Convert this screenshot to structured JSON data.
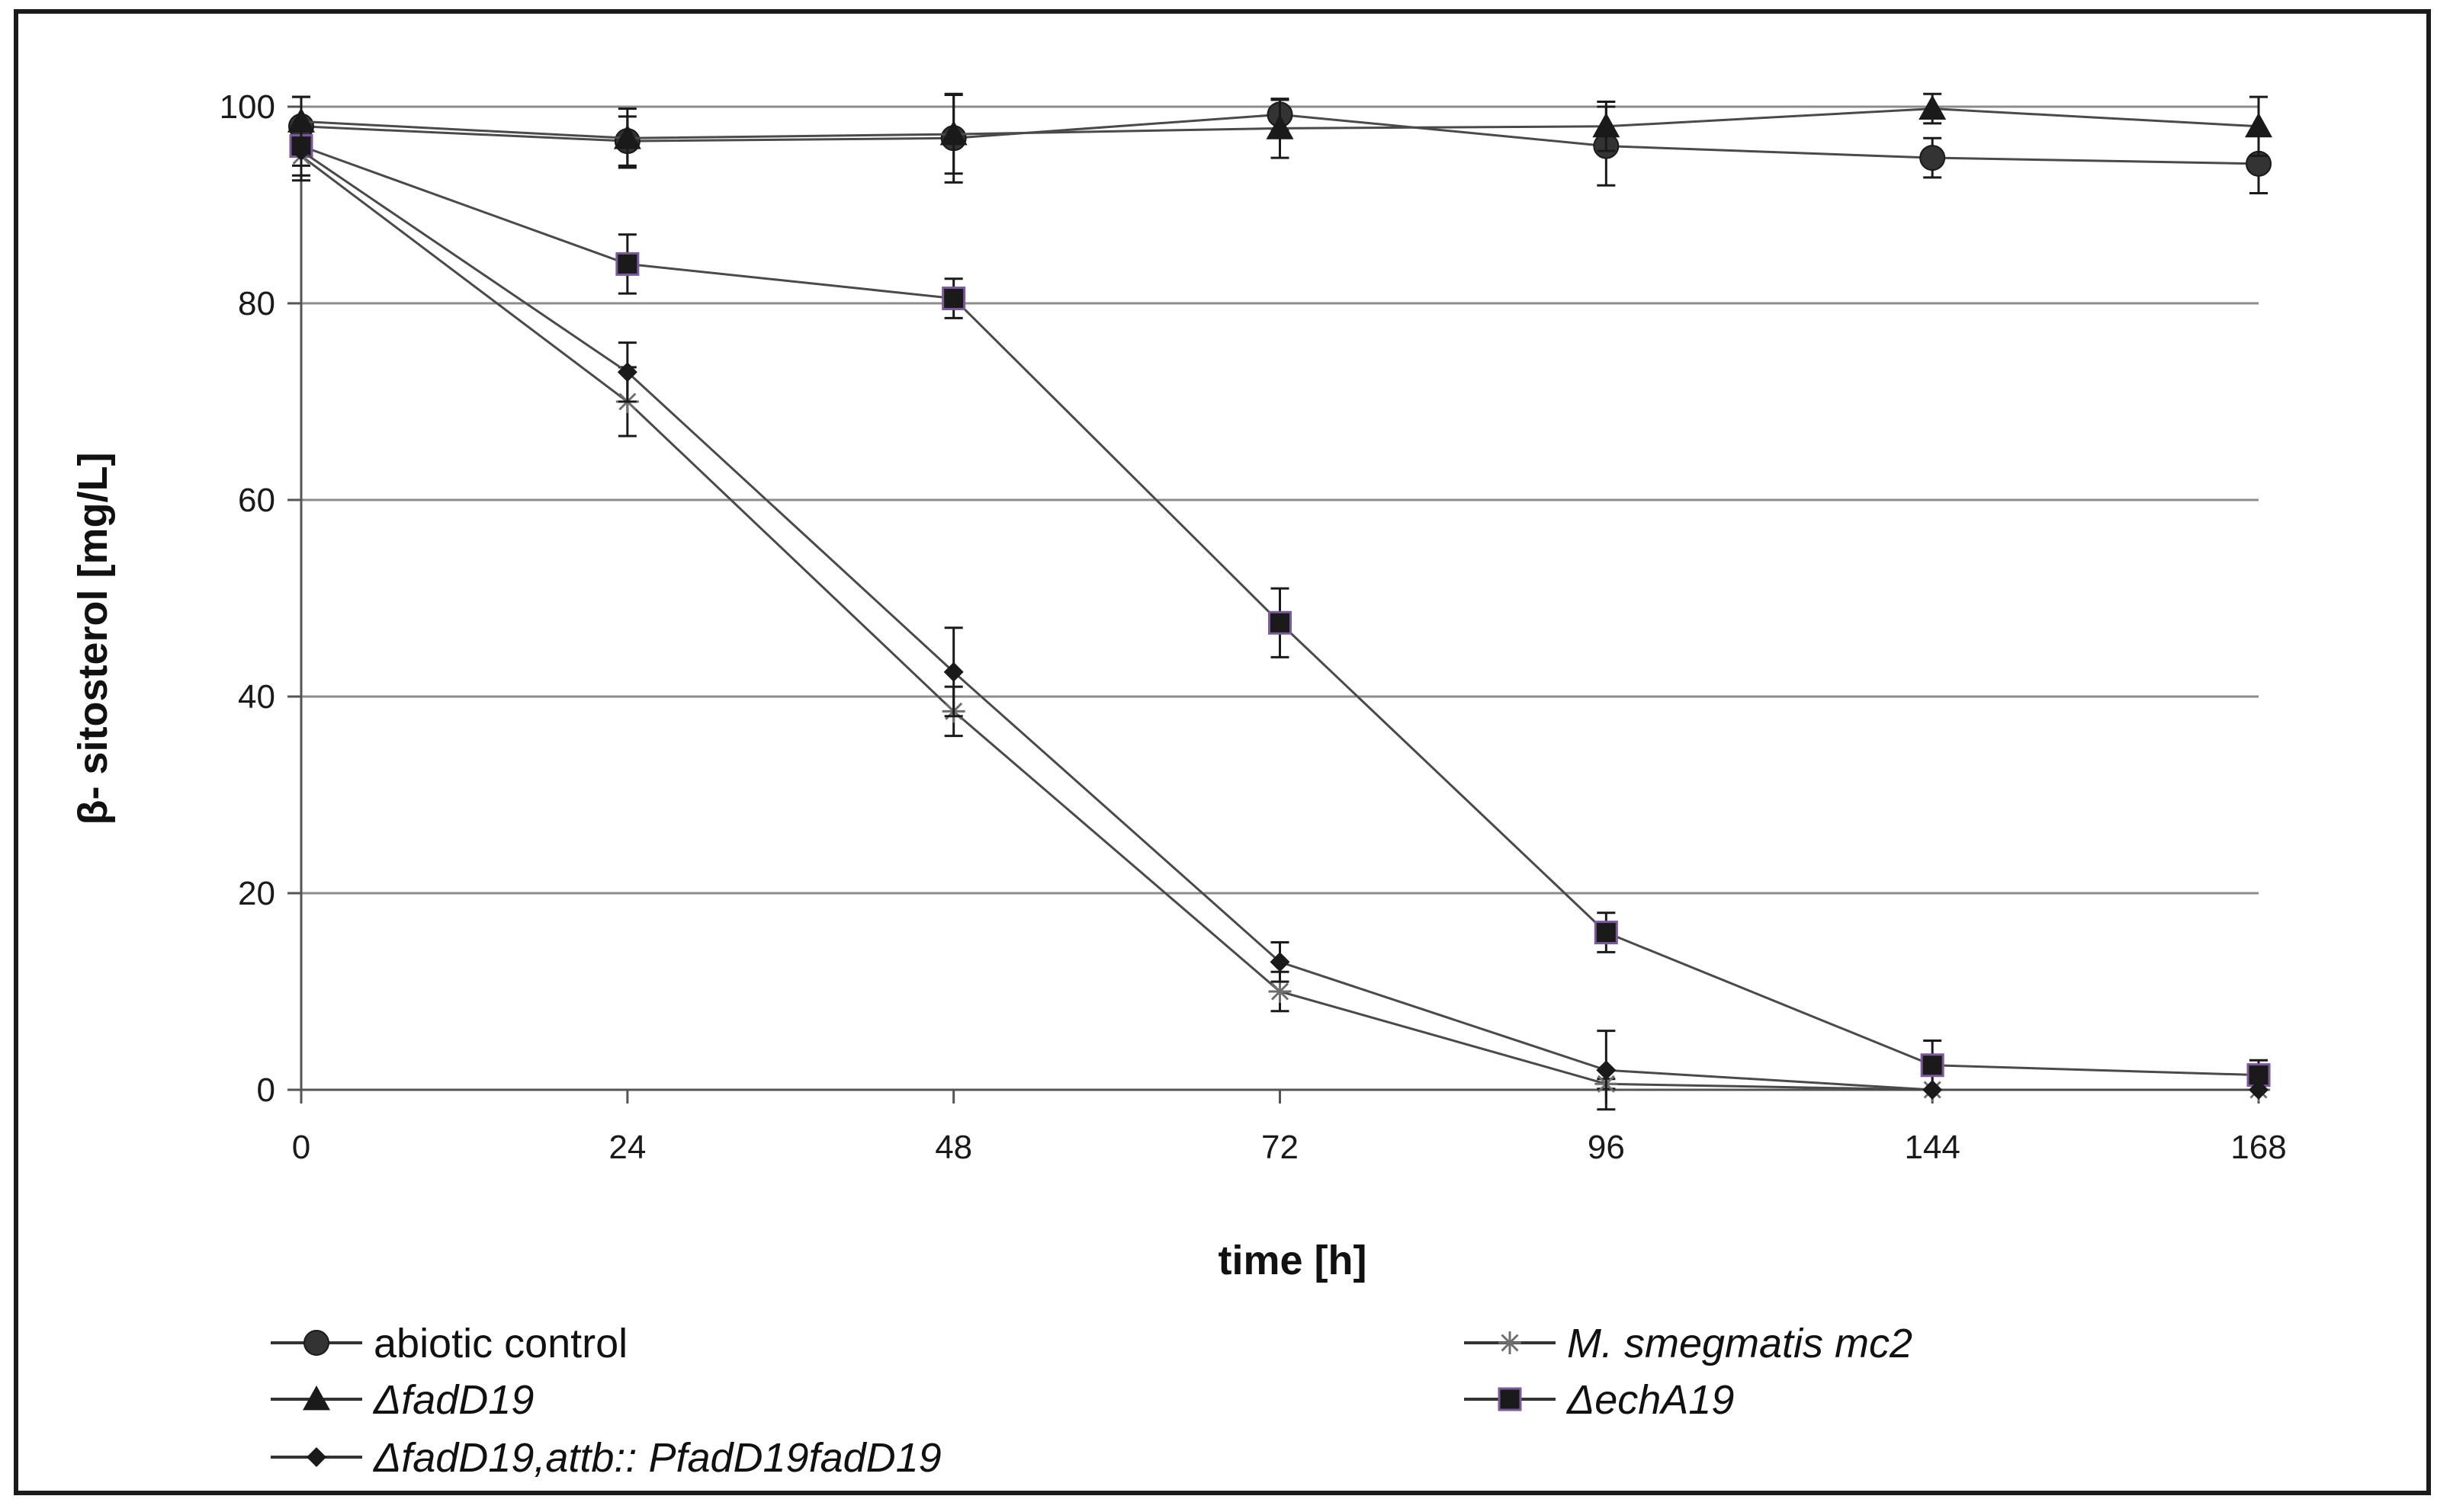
{
  "chart_data": {
    "type": "line",
    "title": "",
    "xlabel": "time [h]",
    "ylabel": "β- sitosterol [mg/L]",
    "categories": [
      "0",
      "24",
      "48",
      "72",
      "96",
      "144",
      "168"
    ],
    "ylim": [
      0,
      100
    ],
    "yticks": [
      0,
      20,
      40,
      60,
      80,
      100
    ],
    "grid": "horizontal",
    "legend": "bottom",
    "series": [
      {
        "name": "abiotic control",
        "marker": "circle",
        "italic": false,
        "legend_col": 0,
        "legend_row": 0,
        "values": [
          98,
          96.5,
          96.8,
          99.2,
          96,
          94.8,
          94.2
        ],
        "errors": [
          3,
          2.5,
          4.5,
          1.5,
          4,
          2,
          3
        ]
      },
      {
        "name": "M. smegmatis mc2",
        "marker": "star",
        "italic": true,
        "legend_col": 1,
        "legend_row": 0,
        "values": [
          95,
          70,
          38.5,
          10,
          0.6,
          0,
          0
        ],
        "errors": [
          2.5,
          3.5,
          2.5,
          2,
          0.5,
          0,
          0
        ]
      },
      {
        "name": "ΔfadD19",
        "marker": "triangle",
        "italic": true,
        "legend_col": 0,
        "legend_row": 1,
        "values": [
          98.5,
          96.8,
          97.2,
          97.8,
          98,
          99.8,
          98
        ],
        "errors": [
          2.5,
          3,
          4,
          3,
          2.5,
          1.5,
          3
        ]
      },
      {
        "name": "ΔechA19",
        "marker": "square",
        "italic": true,
        "legend_col": 1,
        "legend_row": 1,
        "values": [
          96,
          84,
          80.5,
          47.5,
          16,
          2.5,
          1.5
        ],
        "errors": [
          2,
          3,
          2,
          3.5,
          2,
          2.5,
          1.5
        ]
      },
      {
        "name": "ΔfadD19,attb:: PfadD19fadD19",
        "marker": "diamond",
        "italic": true,
        "legend_col": 0,
        "legend_row": 2,
        "values": [
          95.5,
          73,
          42.5,
          13,
          2,
          0,
          0
        ],
        "errors": [
          2.5,
          3,
          4.5,
          2,
          4,
          0,
          0
        ]
      }
    ]
  }
}
